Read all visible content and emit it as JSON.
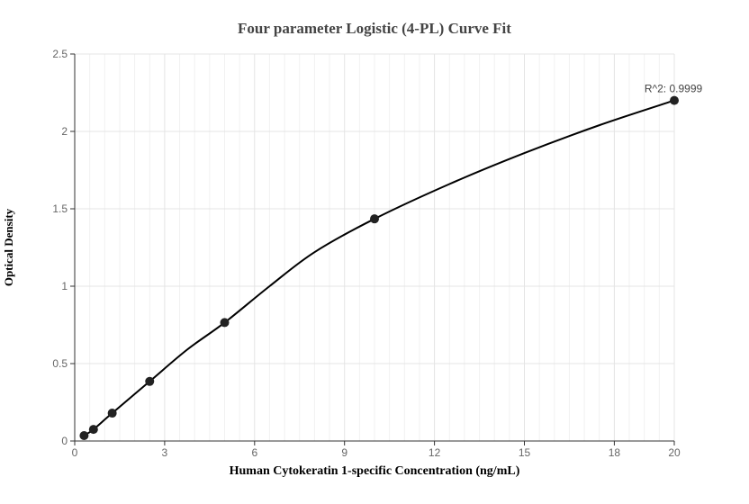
{
  "chart_data": {
    "type": "scatter",
    "title": "Four parameter Logistic (4-PL) Curve Fit",
    "xlabel": "Human Cytokeratin 1-specific Concentration (ng/mL)",
    "ylabel": "Optical Density",
    "xlim": [
      0,
      20
    ],
    "ylim": [
      0,
      2.5
    ],
    "x_ticks": [
      "0",
      "3",
      "6",
      "9",
      "12",
      "15",
      "18",
      "20"
    ],
    "y_ticks": [
      "0",
      "0.5",
      "1",
      "1.5",
      "2",
      "2.5"
    ],
    "x_tick_values": [
      0,
      3,
      6,
      9,
      12,
      15,
      18,
      20
    ],
    "y_tick_values": [
      0,
      0.5,
      1,
      1.5,
      2,
      2.5
    ],
    "grid": true,
    "series": [
      {
        "type": "scatter",
        "x": [
          0.3125,
          0.625,
          1.25,
          2.5,
          5,
          10,
          20
        ],
        "y": [
          0.035,
          0.075,
          0.18,
          0.385,
          0.765,
          1.435,
          2.2
        ],
        "color": "#222222"
      },
      {
        "type": "line",
        "x": [
          0.3125,
          0.625,
          1.25,
          2.5,
          3.75,
          5,
          6.5,
          8,
          10,
          12.5,
          15,
          17.5,
          20
        ],
        "y": [
          0.035,
          0.075,
          0.18,
          0.385,
          0.59,
          0.765,
          1.0,
          1.22,
          1.435,
          1.66,
          1.86,
          2.04,
          2.2
        ],
        "color": "#000000"
      }
    ],
    "annotation": "R^2: 0.9999"
  }
}
